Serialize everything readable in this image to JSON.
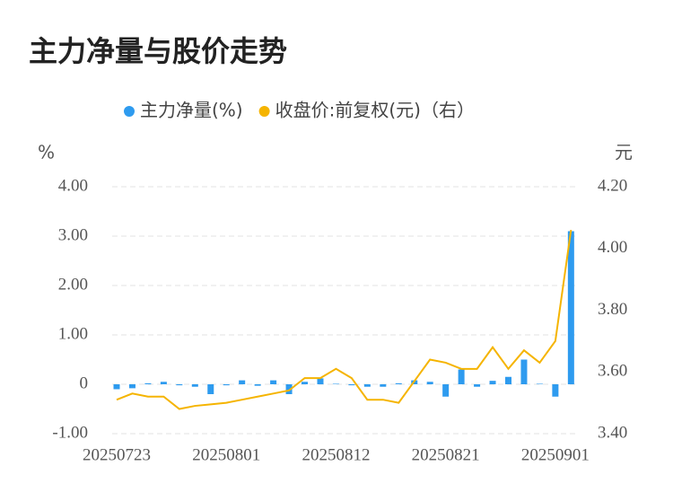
{
  "chart_data": {
    "type": "bar_line",
    "title": "主力净量与股价走势",
    "y_unit": "%",
    "y2_unit": "元",
    "categories": [
      "20250723",
      null,
      null,
      null,
      null,
      null,
      null,
      "20250801",
      null,
      null,
      null,
      null,
      null,
      null,
      "20250812",
      null,
      null,
      null,
      null,
      null,
      null,
      "20250821",
      null,
      null,
      null,
      null,
      null,
      null,
      "20250901",
      null
    ],
    "series": [
      {
        "name": "主力净量(%)",
        "color": "#2e9bef",
        "type": "bar",
        "values": [
          -0.1,
          -0.08,
          0.02,
          0.05,
          -0.02,
          -0.05,
          -0.2,
          -0.02,
          0.08,
          -0.03,
          0.08,
          -0.2,
          0.05,
          0.12,
          0.01,
          -0.02,
          -0.05,
          -0.05,
          0.02,
          0.08,
          0.05,
          -0.25,
          0.3,
          -0.05,
          0.07,
          0.15,
          0.5,
          0.01,
          -0.25,
          3.1
        ]
      },
      {
        "name": "收盘价:前复权(元)（右）",
        "color": "#f5b400",
        "type": "line",
        "axis": "y2",
        "values": [
          3.51,
          3.53,
          3.52,
          3.52,
          3.48,
          3.49,
          3.495,
          3.5,
          3.51,
          3.52,
          3.53,
          3.54,
          3.58,
          3.58,
          3.61,
          3.58,
          3.51,
          3.51,
          3.5,
          3.57,
          3.64,
          3.63,
          3.61,
          3.61,
          3.68,
          3.61,
          3.67,
          3.63,
          3.7,
          4.06
        ]
      }
    ],
    "ylim": [
      -1,
      4
    ],
    "yticks": [
      {
        "value": -1,
        "label": "-1.00"
      },
      {
        "value": 0,
        "label": "0"
      },
      {
        "value": 1,
        "label": "1.00"
      },
      {
        "value": 2,
        "label": "2.00"
      },
      {
        "value": 3,
        "label": "3.00"
      },
      {
        "value": 4,
        "label": "4.00"
      }
    ],
    "y2lim": [
      3.4,
      4.2
    ],
    "y2ticks": [
      {
        "value": 3.4,
        "label": "3.40"
      },
      {
        "value": 3.6,
        "label": "3.60"
      },
      {
        "value": 3.8,
        "label": "3.80"
      },
      {
        "value": 4.0,
        "label": "4.00"
      },
      {
        "value": 4.2,
        "label": "4.20"
      }
    ],
    "grid": true
  }
}
